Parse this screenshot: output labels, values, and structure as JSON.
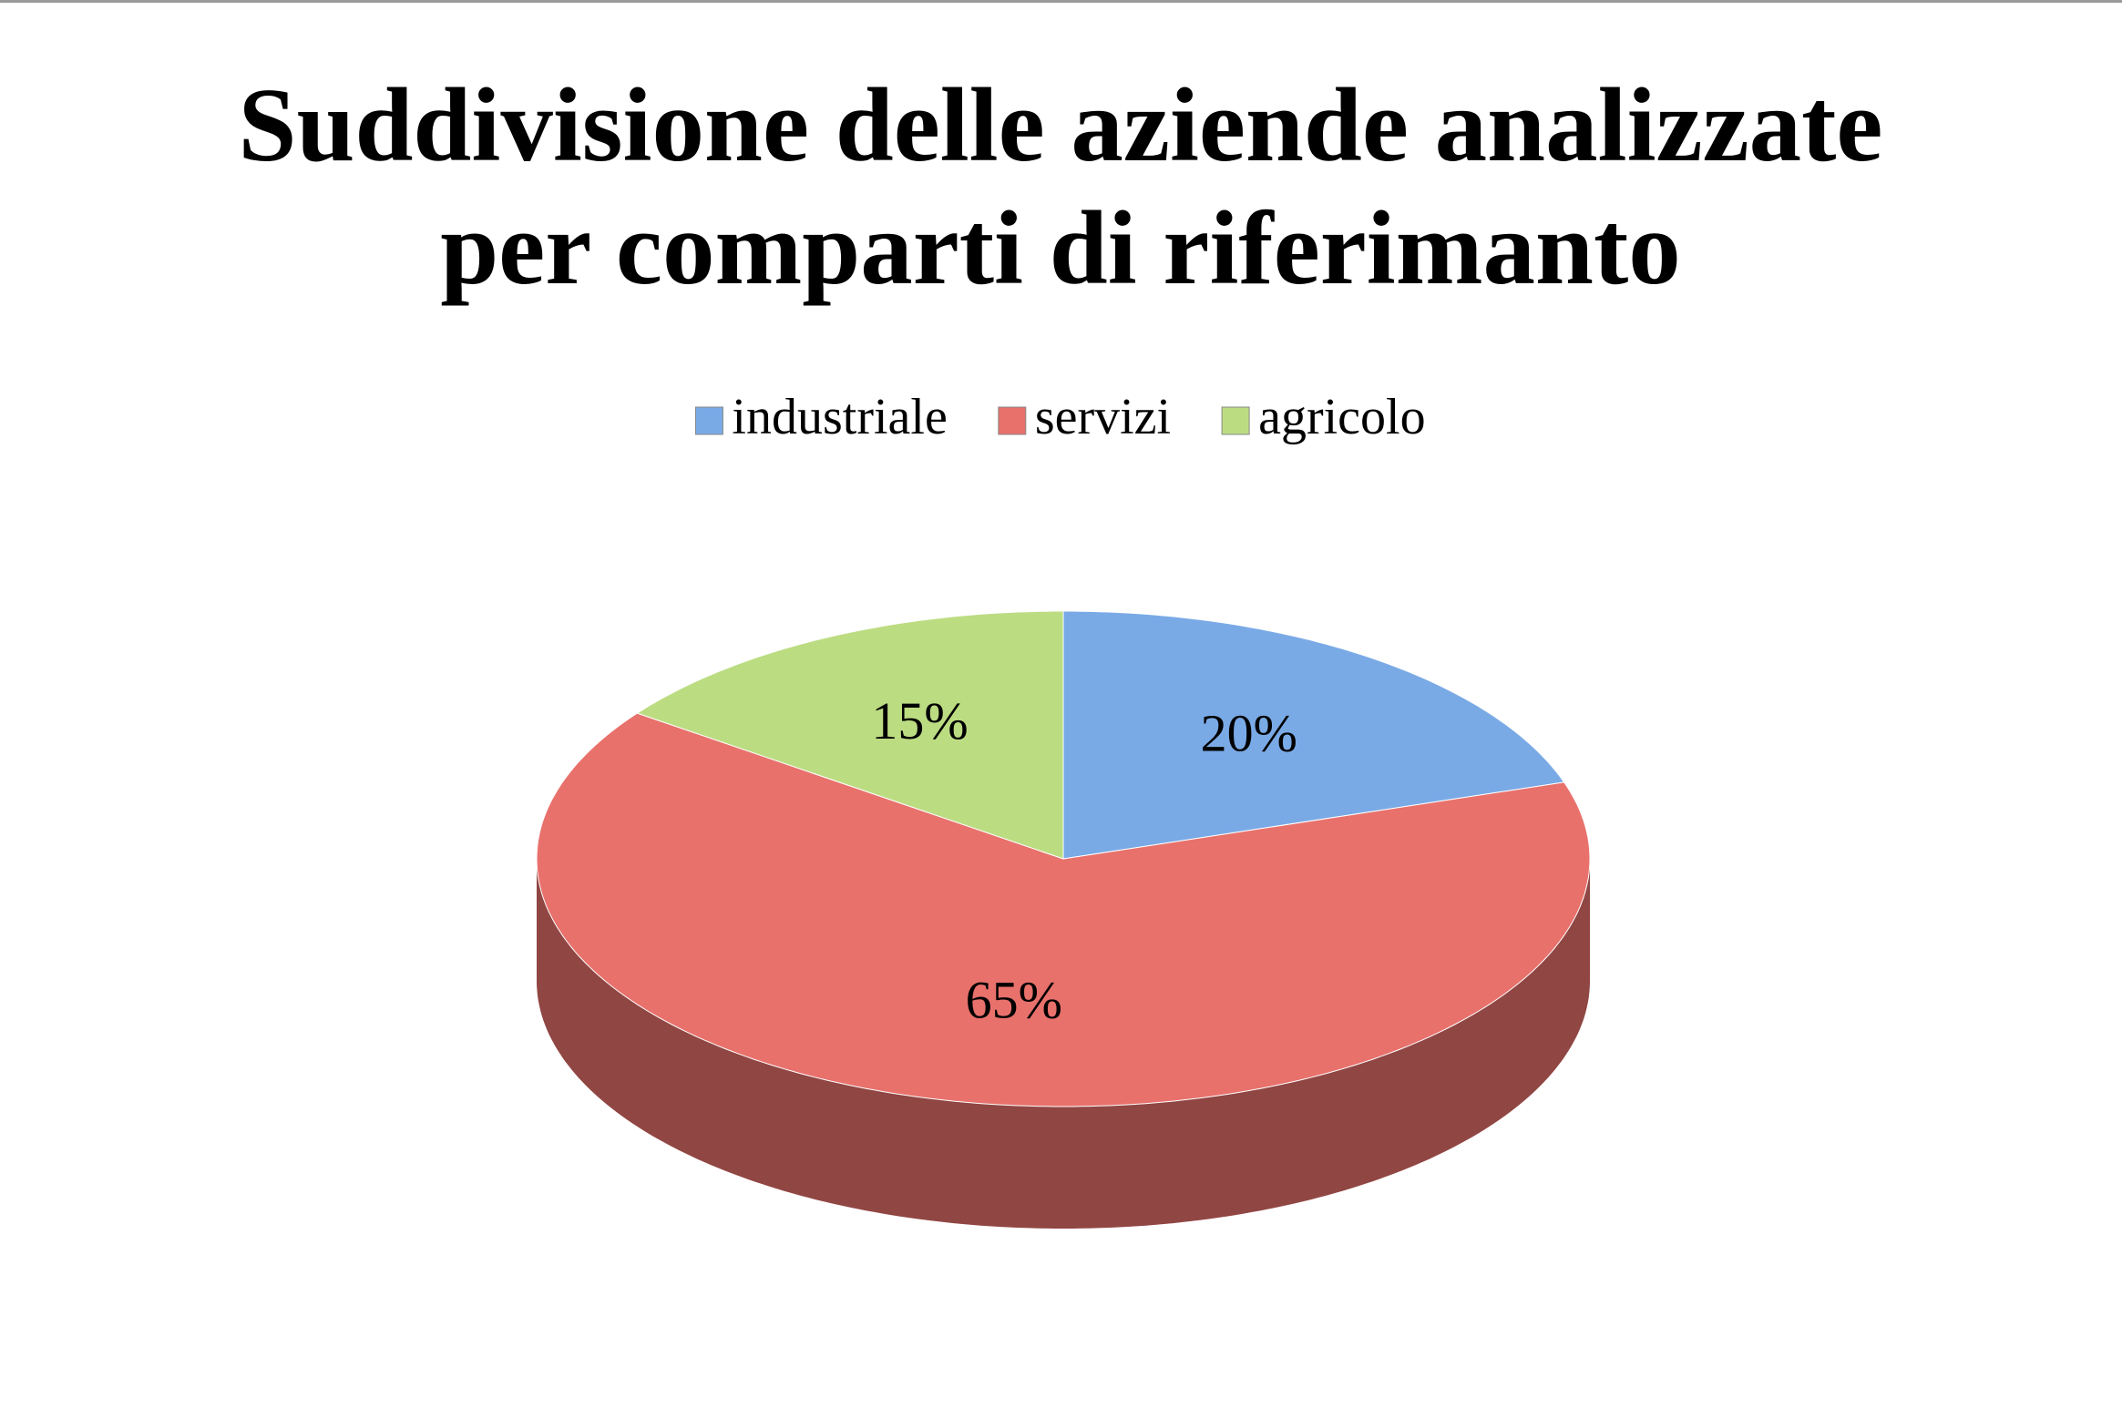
{
  "chart_data": {
    "type": "pie",
    "title": "Suddivisione delle aziende analizzate per comparti di riferimanto",
    "categories": [
      "industriale",
      "servizi",
      "agricolo"
    ],
    "values": [
      20,
      65,
      15
    ],
    "value_labels": [
      "20%",
      "65%",
      "15%"
    ],
    "colors": [
      "#7aaae6",
      "#e8716c",
      "#bcdc82"
    ],
    "legend": "top"
  }
}
